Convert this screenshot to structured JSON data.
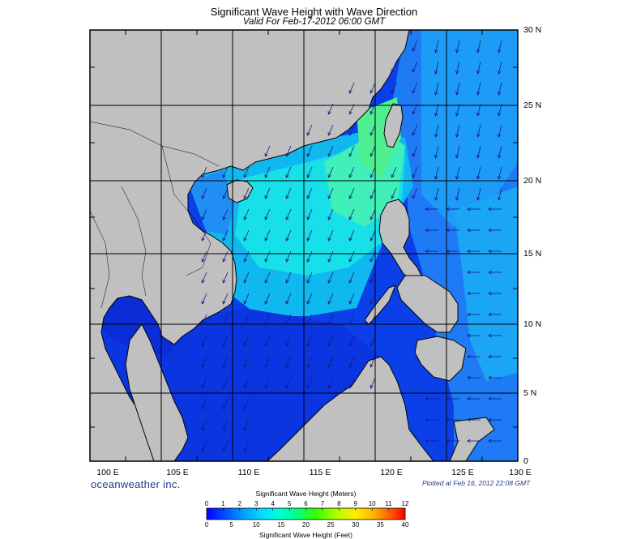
{
  "title": "Significant Wave Height with Wave Direction",
  "subtitle": "Valid For Feb-17-2012 06:00 GMT",
  "brand": "oceanweather inc.",
  "plotted": "Plotted at Feb 16, 2012 22:08 GMT",
  "axes": {
    "lon_labels": [
      "100 E",
      "105 E",
      "110 E",
      "115 E",
      "120 E",
      "125 E",
      "130 E"
    ],
    "lat_labels": [
      "30 N",
      "25 N",
      "20 N",
      "15 N",
      "10 N",
      "5 N",
      "0"
    ],
    "lon_range": [
      100,
      130
    ],
    "lat_range": [
      0,
      30
    ]
  },
  "colorbar": {
    "meters_title": "Significant Wave Height (Meters)",
    "feet_title": "Significant Wave Height (Feet)",
    "meters_ticks": [
      "0",
      "1",
      "2",
      "3",
      "4",
      "5",
      "6",
      "7",
      "8",
      "9",
      "10",
      "11",
      "12"
    ],
    "feet_ticks": [
      "0",
      "5",
      "10",
      "15",
      "20",
      "25",
      "30",
      "35",
      "40"
    ],
    "colors": [
      "#0000ff",
      "#0044ff",
      "#0088ff",
      "#00c8ff",
      "#00ffee",
      "#00ff99",
      "#22ff22",
      "#88ff00",
      "#ccff00",
      "#ffee00",
      "#ffaa00",
      "#ff5500",
      "#ff0000"
    ]
  },
  "colors": {
    "land": "#c0c0c0",
    "grid": "#000000",
    "arrows": "#1a1a80"
  }
}
